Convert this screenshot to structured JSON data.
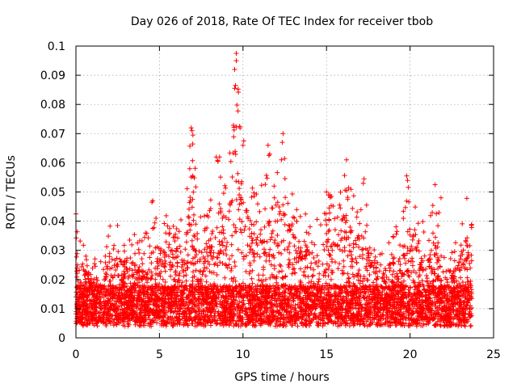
{
  "chart_data": {
    "type": "scatter",
    "title": "Day 026 of 2018, Rate Of TEC Index for receiver tbob",
    "xlabel": "GPS time / hours",
    "ylabel": "ROTI / TECUs",
    "xlim": [
      0,
      25
    ],
    "ylim": [
      0,
      0.1
    ],
    "x_ticks": [
      0,
      5,
      10,
      15,
      20,
      25
    ],
    "y_ticks": [
      0,
      0.01,
      0.02,
      0.03,
      0.04,
      0.05,
      0.06,
      0.07,
      0.08,
      0.09,
      0.1
    ],
    "x_tick_labels": [
      "0",
      "5",
      "10",
      "15",
      "20",
      "25"
    ],
    "y_tick_labels": [
      "0",
      "0.01",
      "0.02",
      "0.03",
      "0.04",
      "0.05",
      "0.06",
      "0.07",
      "0.08",
      "0.09",
      "0.1"
    ],
    "grid": true,
    "marker": "+",
    "color": "#ff0000",
    "x_range_of_data": [
      0,
      23.7
    ],
    "envelope": [
      {
        "x": 0,
        "y": 0.043
      },
      {
        "x": 0.2,
        "y": 0.035
      },
      {
        "x": 0.6,
        "y": 0.03
      },
      {
        "x": 1.0,
        "y": 0.029
      },
      {
        "x": 1.5,
        "y": 0.026
      },
      {
        "x": 2.0,
        "y": 0.039
      },
      {
        "x": 2.5,
        "y": 0.041
      },
      {
        "x": 3.0,
        "y": 0.032
      },
      {
        "x": 3.5,
        "y": 0.036
      },
      {
        "x": 4.0,
        "y": 0.034
      },
      {
        "x": 4.6,
        "y": 0.047
      },
      {
        "x": 5.0,
        "y": 0.04
      },
      {
        "x": 5.5,
        "y": 0.043
      },
      {
        "x": 6.0,
        "y": 0.04
      },
      {
        "x": 6.5,
        "y": 0.042
      },
      {
        "x": 6.9,
        "y": 0.072
      },
      {
        "x": 7.5,
        "y": 0.04
      },
      {
        "x": 8.0,
        "y": 0.046
      },
      {
        "x": 8.5,
        "y": 0.062
      },
      {
        "x": 9.0,
        "y": 0.055
      },
      {
        "x": 9.6,
        "y": 0.097
      },
      {
        "x": 10.0,
        "y": 0.068
      },
      {
        "x": 10.5,
        "y": 0.055
      },
      {
        "x": 11.0,
        "y": 0.052
      },
      {
        "x": 11.5,
        "y": 0.058
      },
      {
        "x": 12.0,
        "y": 0.064
      },
      {
        "x": 12.4,
        "y": 0.07
      },
      {
        "x": 13.0,
        "y": 0.048
      },
      {
        "x": 13.5,
        "y": 0.043
      },
      {
        "x": 14.0,
        "y": 0.045
      },
      {
        "x": 14.5,
        "y": 0.042
      },
      {
        "x": 15.0,
        "y": 0.05
      },
      {
        "x": 15.5,
        "y": 0.048
      },
      {
        "x": 16.2,
        "y": 0.061
      },
      {
        "x": 16.8,
        "y": 0.045
      },
      {
        "x": 17.2,
        "y": 0.054
      },
      {
        "x": 17.8,
        "y": 0.035
      },
      {
        "x": 18.5,
        "y": 0.03
      },
      {
        "x": 19.0,
        "y": 0.039
      },
      {
        "x": 19.5,
        "y": 0.037
      },
      {
        "x": 19.8,
        "y": 0.056
      },
      {
        "x": 20.5,
        "y": 0.041
      },
      {
        "x": 21.0,
        "y": 0.04
      },
      {
        "x": 21.5,
        "y": 0.053
      },
      {
        "x": 22.0,
        "y": 0.033
      },
      {
        "x": 22.5,
        "y": 0.03
      },
      {
        "x": 23.0,
        "y": 0.036
      },
      {
        "x": 23.4,
        "y": 0.048
      },
      {
        "x": 23.7,
        "y": 0.042
      }
    ],
    "peaks": [
      {
        "x": 9.6,
        "y": 0.0975
      },
      {
        "x": 9.6,
        "y": 0.095
      },
      {
        "x": 9.5,
        "y": 0.092
      },
      {
        "x": 9.55,
        "y": 0.0865
      },
      {
        "x": 9.5,
        "y": 0.0855
      },
      {
        "x": 9.8,
        "y": 0.0725
      },
      {
        "x": 6.9,
        "y": 0.072
      },
      {
        "x": 6.95,
        "y": 0.071
      },
      {
        "x": 7.0,
        "y": 0.0695
      },
      {
        "x": 12.4,
        "y": 0.07
      },
      {
        "x": 12.35,
        "y": 0.067
      },
      {
        "x": 11.5,
        "y": 0.066
      },
      {
        "x": 10.05,
        "y": 0.0675
      },
      {
        "x": 10.0,
        "y": 0.066
      },
      {
        "x": 11.6,
        "y": 0.063
      },
      {
        "x": 11.55,
        "y": 0.0625
      },
      {
        "x": 16.2,
        "y": 0.061
      },
      {
        "x": 12.3,
        "y": 0.061
      },
      {
        "x": 8.4,
        "y": 0.062
      },
      {
        "x": 8.6,
        "y": 0.062
      },
      {
        "x": 8.5,
        "y": 0.0605
      },
      {
        "x": 19.8,
        "y": 0.0555
      },
      {
        "x": 19.85,
        "y": 0.054
      },
      {
        "x": 21.5,
        "y": 0.0525
      },
      {
        "x": 17.25,
        "y": 0.0545
      },
      {
        "x": 17.2,
        "y": 0.053
      },
      {
        "x": 23.4,
        "y": 0.0478
      },
      {
        "x": 21.85,
        "y": 0.048
      },
      {
        "x": 4.6,
        "y": 0.047
      },
      {
        "x": 4.55,
        "y": 0.0465
      },
      {
        "x": 0.0,
        "y": 0.0425
      },
      {
        "x": 15.0,
        "y": 0.05
      },
      {
        "x": 15.2,
        "y": 0.049
      }
    ]
  }
}
